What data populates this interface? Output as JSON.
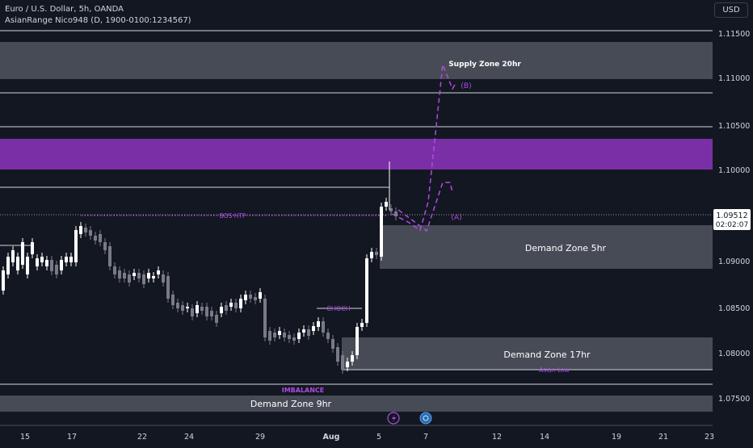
{
  "header": {
    "title": "Euro / U.S. Dollar, 5h, OANDA",
    "indicator": "AsianRange Nico948 (D, 1900-0100:1234567)"
  },
  "currency_button": "USD",
  "colors": {
    "background": "#131722",
    "candle": "#ffffff",
    "candle_dark": "#787b86",
    "zone": "#4a4e5a",
    "purple_zone": "#7b2fa6",
    "purple": "#b04be0",
    "axis_text": "#d1d4dc"
  },
  "price_axis": {
    "ticks": [
      "1.11500",
      "1.11000",
      "1.10500",
      "1.10000",
      "1.09000",
      "1.08500",
      "1.08000",
      "1.07500"
    ],
    "current_price": "1.09512",
    "countdown": "02:02:07"
  },
  "time_axis": {
    "ticks": [
      "15",
      "17",
      "22",
      "24",
      "29",
      "Aug",
      "5",
      "7",
      "12",
      "14",
      "19",
      "21",
      "23"
    ]
  },
  "zones": {
    "supply_20hr": "Supply Zone 20hr",
    "demand_5hr": "Demand Zone 5hr",
    "demand_17hr": "Demand Zone 17hr",
    "demand_9hr": "Demand Zone 9hr"
  },
  "annotations": {
    "bos": "BOS HTF",
    "choch": "CHOCH",
    "imbalance": "IMBALANCE",
    "asian_low": "Asian Low",
    "wave_a": "(A)",
    "wave_b": "(B)"
  },
  "icons": {
    "lightning": "lightning-icon",
    "earnings": "globe-icon"
  }
}
